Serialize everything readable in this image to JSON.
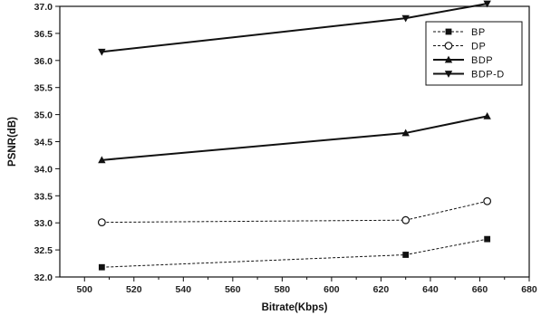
{
  "chart_data": {
    "type": "line",
    "xlabel": "Bitrate(Kbps)",
    "ylabel": "PSNR(dB)",
    "xlim": [
      490,
      680
    ],
    "ylim": [
      32.0,
      37.0
    ],
    "x_ticks": [
      "500",
      "520",
      "540",
      "560",
      "580",
      "600",
      "620",
      "640",
      "660",
      "680"
    ],
    "y_ticks": [
      "32.0",
      "32.5",
      "33.0",
      "33.5",
      "34.0",
      "34.5",
      "35.0",
      "35.5",
      "36.0",
      "36.5",
      "37.0"
    ],
    "grid": false,
    "legend_position": "top-right",
    "series": [
      {
        "name": "BP",
        "marker": "square-filled",
        "line": "dashed",
        "color": "#111111",
        "x": [
          507,
          630,
          663
        ],
        "y": [
          32.18,
          32.41,
          32.7
        ]
      },
      {
        "name": "DP",
        "marker": "circle-open",
        "line": "dashed",
        "color": "#111111",
        "x": [
          507,
          630,
          663
        ],
        "y": [
          33.01,
          33.05,
          33.4
        ]
      },
      {
        "name": "BDP",
        "marker": "triangle-up-filled",
        "line": "solid",
        "color": "#111111",
        "x": [
          507,
          630,
          663
        ],
        "y": [
          34.16,
          34.66,
          34.97
        ]
      },
      {
        "name": "BDP-D",
        "marker": "triangle-down-filled",
        "line": "solid",
        "color": "#111111",
        "x": [
          507,
          630,
          663
        ],
        "y": [
          36.16,
          36.78,
          37.05
        ]
      }
    ]
  }
}
